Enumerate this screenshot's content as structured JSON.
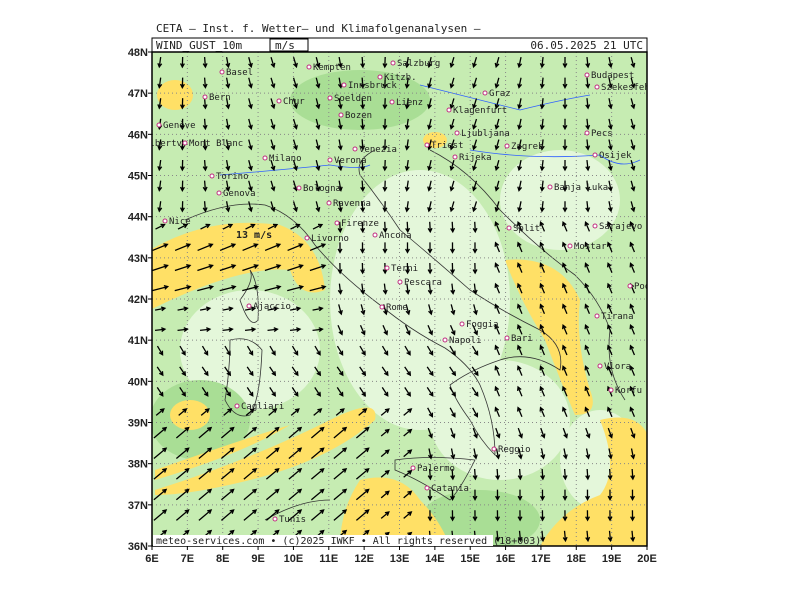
{
  "header": {
    "institute": "CETA — Inst. f. Wetter— und Klimafolgenanalysen —",
    "parameter": "WIND_GUST_10m",
    "unit": "m/s",
    "valid_time": "06.05.2025 21 UTC"
  },
  "lon_labels": [
    "6E",
    "7E",
    "8E",
    "9E",
    "10E",
    "11E",
    "12E",
    "13E",
    "14E",
    "15E",
    "16E",
    "17E",
    "18E",
    "19E",
    "20E"
  ],
  "lat_labels": [
    "36N",
    "37N",
    "38N",
    "39N",
    "40N",
    "41N",
    "42N",
    "43N",
    "44N",
    "45N",
    "46N",
    "47N",
    "48N"
  ],
  "annotation": "13 m/s",
  "cities": [
    "Basel",
    "Bern",
    "Genève",
    "Albertv.",
    "Mont Blanc",
    "Chur",
    "Kempten",
    "Innsbruck",
    "Soelden",
    "Bozen",
    "Salzburg",
    "Kitzb.",
    "Lienz",
    "Graz",
    "Klagenfurt",
    "Ljubljana",
    "Triest",
    "Rijeka",
    "Zagreb",
    "Milano",
    "Verona",
    "Venezia",
    "Torino",
    "Genova",
    "Bologna",
    "Ravenna",
    "Firenze",
    "Ancona",
    "Livorno",
    "Nice",
    "Terni",
    "Pescara",
    "Rome",
    "Ajaccio",
    "Napoli",
    "Foggia",
    "Bari",
    "Cagliari",
    "Palermo",
    "Catania",
    "Reggio",
    "Tunis",
    "Split",
    "Sarajevo",
    "Mostar",
    "Banja Luka",
    "Osijek",
    "Pecs",
    "Budapest",
    "Szekesfeh",
    "Podgorica",
    "Tirana",
    "Vlora",
    "Korfu"
  ],
  "footer": "meteo-services.com • (c)2025 IWKF • All rights reserved (18+003)"
}
